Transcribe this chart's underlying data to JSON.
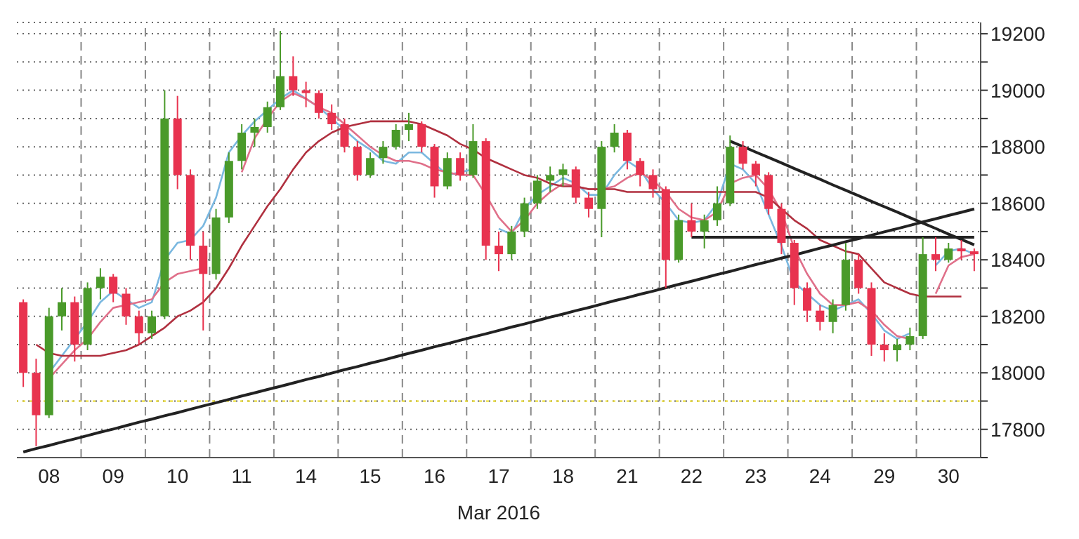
{
  "chart_data": {
    "type": "candlestick",
    "xlabel": "Mar 2016",
    "categories": [
      null,
      null,
      "08",
      null,
      null,
      null,
      null,
      "09",
      null,
      null,
      null,
      null,
      "10",
      null,
      null,
      null,
      null,
      "11",
      null,
      null,
      null,
      null,
      "14",
      null,
      null,
      null,
      null,
      "15",
      null,
      null,
      null,
      null,
      "16",
      null,
      null,
      null,
      null,
      "17",
      null,
      null,
      null,
      null,
      "18",
      null,
      null,
      null,
      null,
      "21",
      null,
      null,
      null,
      null,
      "22",
      null,
      null,
      null,
      null,
      "23",
      null,
      null,
      null,
      null,
      "24",
      null,
      null,
      null,
      null,
      "29",
      null,
      null,
      null,
      null,
      "30",
      null,
      null
    ],
    "ohlc": [
      [
        18250,
        18260,
        17950,
        18000
      ],
      [
        18000,
        18050,
        17740,
        17850
      ],
      [
        17850,
        18230,
        17840,
        18200
      ],
      [
        18200,
        18300,
        18150,
        18250
      ],
      [
        18250,
        18270,
        18040,
        18100
      ],
      [
        18100,
        18320,
        18080,
        18300
      ],
      [
        18300,
        18370,
        18260,
        18340
      ],
      [
        18340,
        18350,
        18250,
        18280
      ],
      [
        18280,
        18300,
        18170,
        18200
      ],
      [
        18200,
        18220,
        18100,
        18140
      ],
      [
        18140,
        18220,
        18120,
        18200
      ],
      [
        18200,
        19000,
        18190,
        18900
      ],
      [
        18900,
        18980,
        18650,
        18700
      ],
      [
        18700,
        18720,
        18400,
        18450
      ],
      [
        18450,
        18500,
        18150,
        18350
      ],
      [
        18350,
        18580,
        18330,
        18550
      ],
      [
        18550,
        18780,
        18530,
        18750
      ],
      [
        18750,
        18880,
        18720,
        18850
      ],
      [
        18850,
        18900,
        18800,
        18870
      ],
      [
        18870,
        18960,
        18850,
        18940
      ],
      [
        18940,
        19210,
        18930,
        19050
      ],
      [
        19050,
        19120,
        18980,
        19000
      ],
      [
        19000,
        19030,
        18940,
        18990
      ],
      [
        18990,
        19000,
        18900,
        18920
      ],
      [
        18920,
        18950,
        18860,
        18880
      ],
      [
        18880,
        18900,
        18780,
        18800
      ],
      [
        18800,
        18820,
        18680,
        18700
      ],
      [
        18700,
        18780,
        18690,
        18760
      ],
      [
        18760,
        18820,
        18740,
        18800
      ],
      [
        18800,
        18880,
        18790,
        18860
      ],
      [
        18860,
        18920,
        18820,
        18880
      ],
      [
        18880,
        18890,
        18780,
        18800
      ],
      [
        18800,
        18810,
        18620,
        18660
      ],
      [
        18660,
        18780,
        18650,
        18760
      ],
      [
        18760,
        18780,
        18680,
        18700
      ],
      [
        18700,
        18880,
        18690,
        18820
      ],
      [
        18820,
        18830,
        18400,
        18450
      ],
      [
        18450,
        18500,
        18360,
        18420
      ],
      [
        18420,
        18520,
        18400,
        18500
      ],
      [
        18500,
        18620,
        18480,
        18600
      ],
      [
        18600,
        18700,
        18580,
        18680
      ],
      [
        18680,
        18730,
        18640,
        18700
      ],
      [
        18700,
        18740,
        18660,
        18720
      ],
      [
        18720,
        18730,
        18600,
        18620
      ],
      [
        18620,
        18640,
        18550,
        18580
      ],
      [
        18580,
        18820,
        18480,
        18800
      ],
      [
        18800,
        18880,
        18780,
        18850
      ],
      [
        18850,
        18860,
        18720,
        18750
      ],
      [
        18750,
        18760,
        18660,
        18700
      ],
      [
        18700,
        18720,
        18620,
        18650
      ],
      [
        18650,
        18660,
        18300,
        18400
      ],
      [
        18400,
        18560,
        18390,
        18540
      ],
      [
        18540,
        18600,
        18480,
        18500
      ],
      [
        18500,
        18560,
        18440,
        18540
      ],
      [
        18540,
        18660,
        18520,
        18600
      ],
      [
        18600,
        18840,
        18590,
        18800
      ],
      [
        18800,
        18820,
        18720,
        18740
      ],
      [
        18740,
        18750,
        18660,
        18700
      ],
      [
        18700,
        18710,
        18560,
        18580
      ],
      [
        18580,
        18600,
        18420,
        18460
      ],
      [
        18460,
        18470,
        18240,
        18300
      ],
      [
        18300,
        18320,
        18180,
        18220
      ],
      [
        18220,
        18240,
        18150,
        18180
      ],
      [
        18180,
        18260,
        18140,
        18240
      ],
      [
        18240,
        18460,
        18220,
        18400
      ],
      [
        18400,
        18420,
        18280,
        18300
      ],
      [
        18300,
        18320,
        18060,
        18100
      ],
      [
        18100,
        18140,
        18040,
        18080
      ],
      [
        18080,
        18120,
        18040,
        18100
      ],
      [
        18100,
        18160,
        18080,
        18130
      ],
      [
        18130,
        18480,
        18120,
        18420
      ],
      [
        18420,
        18480,
        18360,
        18400
      ],
      [
        18400,
        18460,
        18390,
        18440
      ],
      [
        18440,
        18470,
        18400,
        18430
      ],
      [
        18430,
        18440,
        18360,
        18420
      ]
    ],
    "colors": [
      "#e8334f",
      "#e8334f",
      "#4a9a2a",
      "#4a9a2a",
      "#e8334f",
      "#4a9a2a",
      "#4a9a2a",
      "#e8334f",
      "#e8334f",
      "#e8334f",
      "#4a9a2a",
      "#4a9a2a",
      "#e8334f",
      "#e8334f",
      "#e8334f",
      "#4a9a2a",
      "#4a9a2a",
      "#4a9a2a",
      "#4a9a2a",
      "#4a9a2a",
      "#4a9a2a",
      "#e8334f",
      "#e8334f",
      "#e8334f",
      "#e8334f",
      "#e8334f",
      "#e8334f",
      "#4a9a2a",
      "#4a9a2a",
      "#4a9a2a",
      "#4a9a2a",
      "#e8334f",
      "#e8334f",
      "#4a9a2a",
      "#e8334f",
      "#4a9a2a",
      "#e8334f",
      "#e8334f",
      "#4a9a2a",
      "#4a9a2a",
      "#4a9a2a",
      "#4a9a2a",
      "#4a9a2a",
      "#e8334f",
      "#e8334f",
      "#4a9a2a",
      "#4a9a2a",
      "#e8334f",
      "#e8334f",
      "#e8334f",
      "#e8334f",
      "#4a9a2a",
      "#e8334f",
      "#4a9a2a",
      "#4a9a2a",
      "#4a9a2a",
      "#e8334f",
      "#e8334f",
      "#e8334f",
      "#e8334f",
      "#e8334f",
      "#e8334f",
      "#e8334f",
      "#4a9a2a",
      "#4a9a2a",
      "#e8334f",
      "#e8334f",
      "#e8334f",
      "#4a9a2a",
      "#4a9a2a",
      "#4a9a2a",
      "#e8334f",
      "#4a9a2a",
      "#e8334f",
      "#e8334f"
    ],
    "series": [
      {
        "type": "line",
        "color": "#7ab8e0",
        "values": [
          null,
          null,
          18000,
          18060,
          18120,
          18180,
          18250,
          18290,
          18260,
          18230,
          18250,
          18400,
          18460,
          18470,
          18520,
          18620,
          18780,
          18840,
          18890,
          18930,
          18970,
          19000,
          18970,
          18940,
          18900,
          18860,
          18820,
          18790,
          18750,
          18740,
          18780,
          18780,
          18740,
          18700,
          18710,
          18720,
          null,
          18510,
          18490,
          18580,
          18630,
          18660,
          18690,
          18670,
          18630,
          18630,
          18700,
          18750,
          18720,
          18650,
          18600,
          18540,
          18530,
          18540,
          18600,
          18740,
          18720,
          18670,
          18560,
          18450,
          18320,
          18280,
          18240,
          18220,
          18240,
          18260,
          18210,
          18150,
          18120,
          18140,
          null,
          18380,
          18430,
          18440,
          18420
        ]
      },
      {
        "type": "line",
        "color": "#e0708a",
        "values": [
          null,
          null,
          17980,
          18030,
          18080,
          18120,
          18180,
          18230,
          18240,
          18250,
          18260,
          18320,
          18350,
          18360,
          18370,
          null,
          null,
          18710,
          18830,
          18900,
          18960,
          18990,
          18970,
          18940,
          18920,
          18880,
          18840,
          18800,
          18770,
          18750,
          18750,
          18740,
          18720,
          18710,
          18700,
          18700,
          18630,
          18550,
          18500,
          18540,
          18600,
          18640,
          18670,
          18660,
          18650,
          18650,
          18660,
          18690,
          18710,
          18680,
          18640,
          18580,
          18550,
          18540,
          18570,
          18670,
          18690,
          18700,
          18650,
          18570,
          18440,
          18350,
          18280,
          18240,
          18240,
          18250,
          18220,
          18170,
          18130,
          18120,
          null,
          18280,
          18380,
          18410,
          18420
        ]
      },
      {
        "type": "line",
        "color": "#b0303f",
        "values": [
          null,
          18100,
          18070,
          18060,
          18060,
          18060,
          18060,
          18070,
          18080,
          18100,
          18130,
          18160,
          18200,
          18220,
          18250,
          18300,
          18370,
          18450,
          18520,
          18590,
          18650,
          18720,
          18780,
          18820,
          18850,
          18870,
          18880,
          18890,
          18890,
          18890,
          18890,
          18880,
          18860,
          18840,
          18810,
          18790,
          18760,
          18740,
          18720,
          18700,
          18690,
          18670,
          18660,
          18660,
          18650,
          18650,
          18650,
          18640,
          18640,
          18640,
          18640,
          18640,
          18640,
          18640,
          18640,
          18640,
          18640,
          18640,
          18620,
          18580,
          18540,
          18510,
          18470,
          18450,
          18430,
          18420,
          18370,
          18320,
          18300,
          18280,
          18270,
          18270,
          18270,
          18270,
          null
        ]
      },
      {
        "type": "line",
        "color": "#222222",
        "values": [
          17720,
          17732,
          17743,
          17755,
          17766,
          17778,
          17790,
          17801,
          17813,
          17825,
          17836,
          17848,
          17859,
          17871,
          17883,
          17894,
          17906,
          17918,
          17929,
          17941,
          17952,
          17964,
          17976,
          17987,
          17999,
          18011,
          18022,
          18034,
          18045,
          18057,
          18069,
          18080,
          18092,
          18103,
          18115,
          18127,
          18138,
          18150,
          18162,
          18173,
          18185,
          18197,
          18208,
          18220,
          18231,
          18243,
          18255,
          18266,
          18278,
          18289,
          18301,
          18313,
          18324,
          18336,
          18348,
          18359,
          18371,
          18383,
          18394,
          18406,
          18417,
          18429,
          18441,
          18452,
          18464,
          18475,
          18487,
          18499,
          18510,
          18522,
          18534,
          18545,
          18557,
          18568,
          18580
        ]
      },
      {
        "type": "line",
        "color": "#222222",
        "values": [
          null,
          null,
          null,
          null,
          null,
          null,
          null,
          null,
          null,
          null,
          null,
          null,
          null,
          null,
          null,
          null,
          null,
          null,
          null,
          null,
          null,
          null,
          null,
          null,
          null,
          null,
          null,
          null,
          null,
          null,
          null,
          null,
          null,
          null,
          null,
          null,
          null,
          null,
          null,
          null,
          null,
          null,
          null,
          null,
          null,
          null,
          null,
          null,
          null,
          null,
          null,
          null,
          null,
          null,
          null,
          18820,
          18801,
          18781,
          18762,
          18743,
          18723,
          18704,
          18685,
          18665,
          18646,
          18627,
          18607,
          18588,
          18569,
          18549,
          18530,
          18511,
          18491,
          18472,
          18453
        ]
      },
      {
        "type": "line",
        "color": "#222222",
        "values": [
          null,
          null,
          null,
          null,
          null,
          null,
          null,
          null,
          null,
          null,
          null,
          null,
          null,
          null,
          null,
          null,
          null,
          null,
          null,
          null,
          null,
          null,
          null,
          null,
          null,
          null,
          null,
          null,
          null,
          null,
          null,
          null,
          null,
          null,
          null,
          null,
          null,
          null,
          null,
          null,
          null,
          null,
          null,
          null,
          null,
          null,
          null,
          null,
          null,
          null,
          null,
          null,
          18480,
          18480,
          18480,
          18480,
          18480,
          18480,
          18480,
          18480,
          18480,
          18480,
          18480,
          18480,
          18480,
          18480,
          18480,
          18480,
          18480,
          18480,
          18480,
          18480,
          18480,
          18480,
          18480
        ]
      }
    ],
    "ylim": [
      17700,
      19240
    ],
    "yticks": [
      {
        "value": 17700,
        "label": null
      },
      17800,
      {
        "value": 17900,
        "label": null
      },
      18000,
      {
        "value": 18100,
        "label": null
      },
      18200,
      {
        "value": 18300,
        "label": null
      },
      18400,
      {
        "value": 18500,
        "label": null
      },
      18600,
      {
        "value": 18700,
        "label": null
      },
      18800,
      {
        "value": 18900,
        "label": null
      },
      19000,
      {
        "value": 19100,
        "label": null
      },
      19200
    ],
    "grid": true,
    "marker": "none",
    "ref_lines": [
      {
        "axis": "y",
        "value": 17900,
        "color": "#e8d820",
        "line_style": "dotted"
      }
    ]
  }
}
